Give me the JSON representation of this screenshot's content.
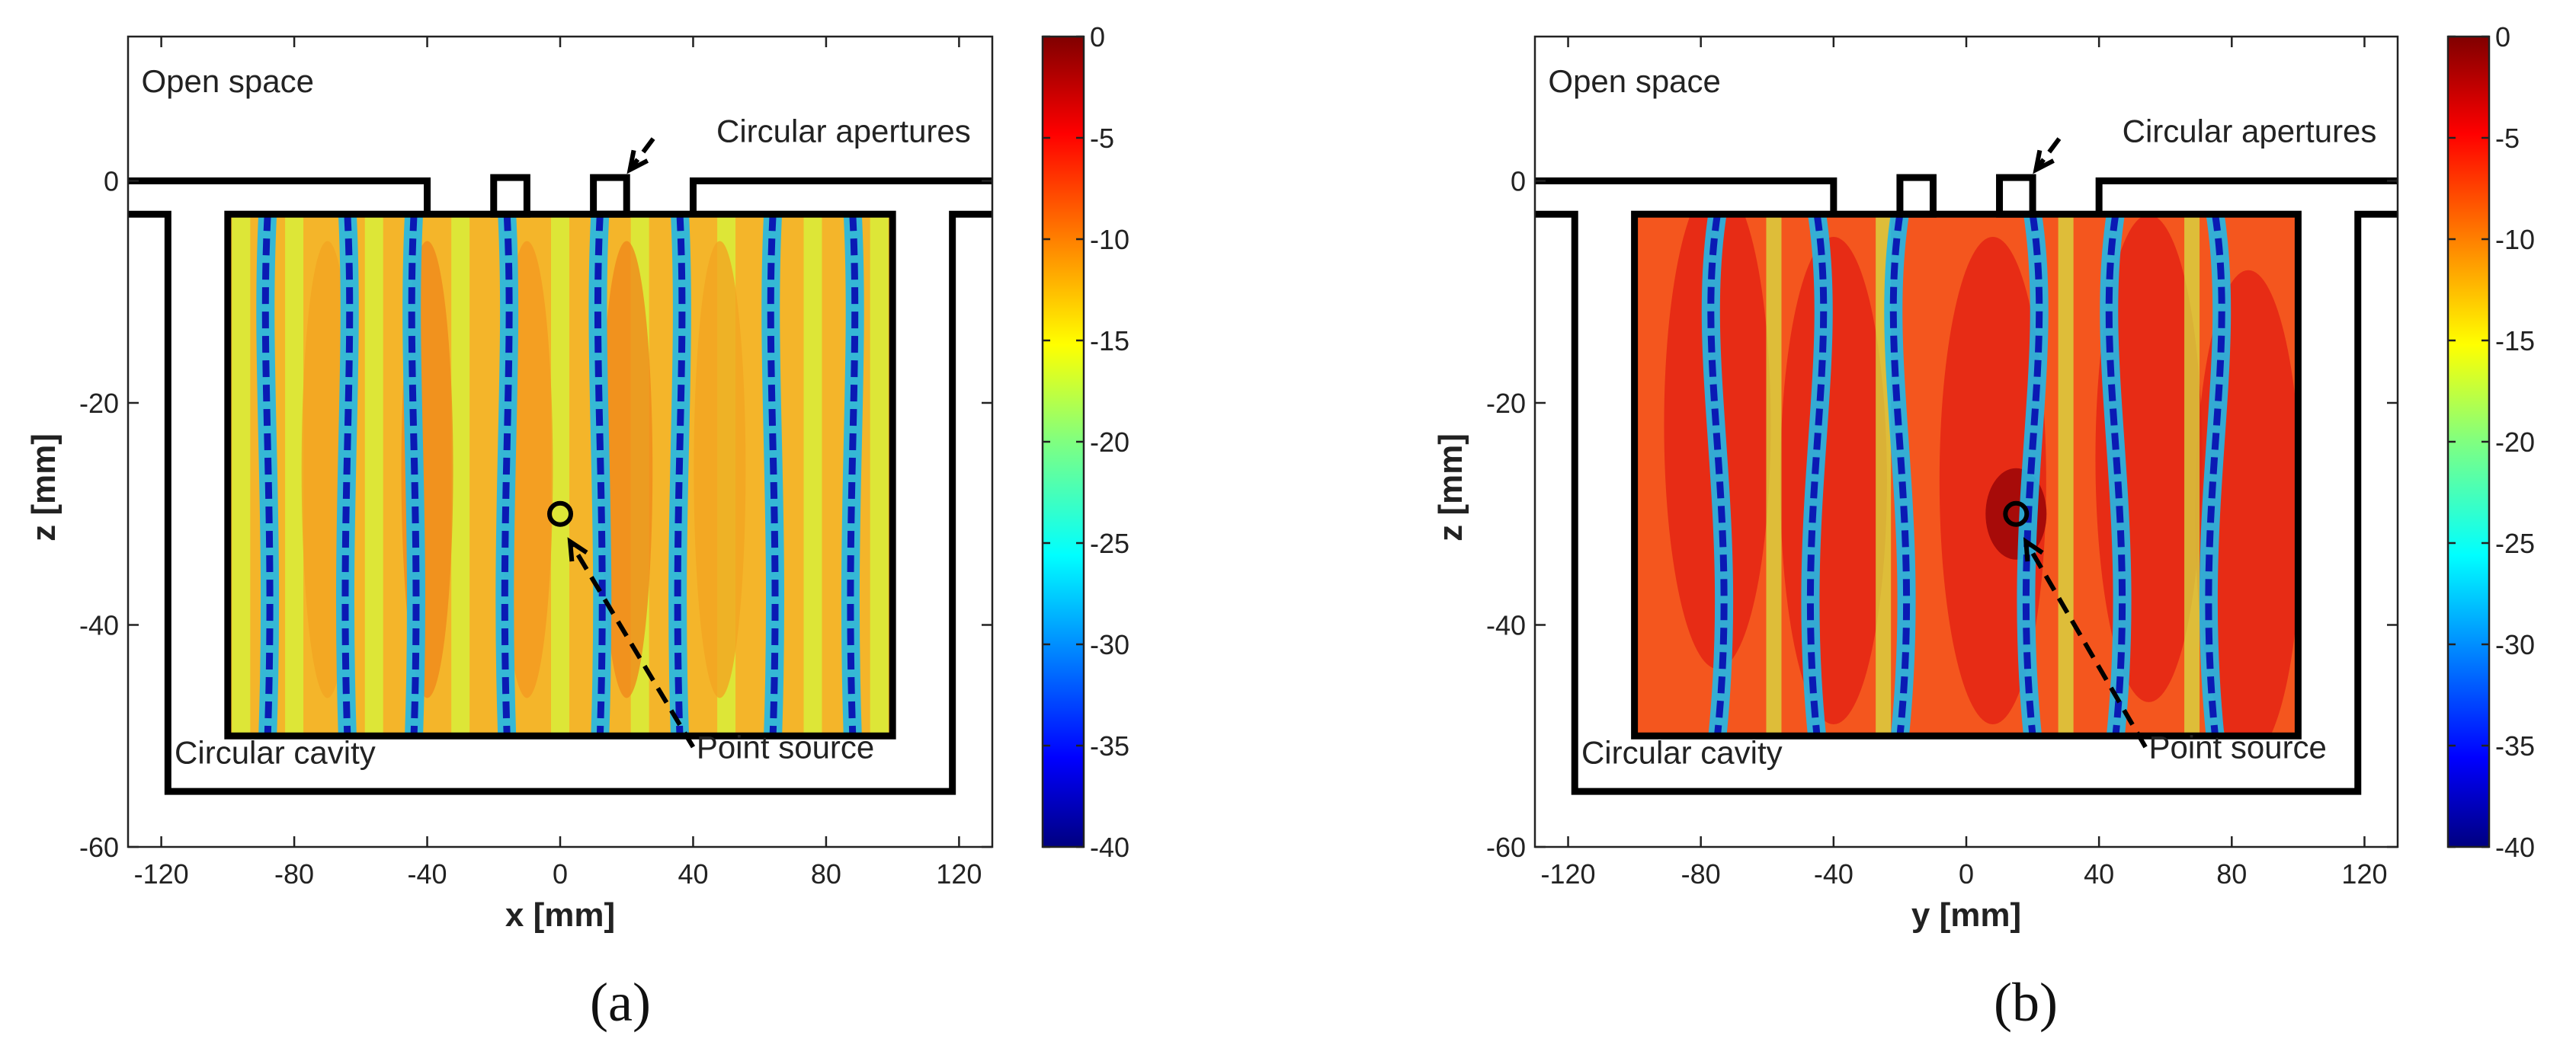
{
  "chart_data": [
    {
      "type": "heatmap",
      "panel_label": "(a)",
      "xlabel": "x [mm]",
      "ylabel": "z [mm]",
      "xlim": [
        -130,
        130
      ],
      "ylim": [
        -60,
        13
      ],
      "x_ticks": [
        -120,
        -80,
        -40,
        0,
        40,
        80,
        120
      ],
      "y_ticks": [
        0,
        -20,
        -40,
        -60
      ],
      "x_tick_labels": [
        "-120",
        "-80",
        "-40",
        "0",
        "40",
        "80",
        "120"
      ],
      "y_tick_labels": [
        "0",
        "-20",
        "-40",
        "-60"
      ],
      "field_extent": {
        "x": [
          -100,
          100
        ],
        "z": [
          -50,
          -3
        ]
      },
      "point_source": [
        0,
        -30
      ],
      "nodal_lines_x": [
        -88,
        -64,
        -44,
        -16,
        12,
        36,
        64,
        88
      ],
      "colorbar": {
        "min": -40,
        "max": 0,
        "ticks": [
          0,
          -5,
          -10,
          -15,
          -20,
          -25,
          -30,
          -35,
          -40
        ],
        "tick_labels": [
          "0",
          "-5",
          "-10",
          "-15",
          "-20",
          "-25",
          "-30",
          "-35",
          "-40"
        ]
      },
      "annotations": [
        {
          "text": "Open space",
          "x": -126,
          "z": 8
        },
        {
          "text": "Circular apertures",
          "x": 47,
          "z": 3.5
        },
        {
          "text": "Circular cavity",
          "x": -116,
          "z": -52.5
        },
        {
          "text": "Point source",
          "x": 41,
          "z": -52
        },
        {
          "text": "z [mm]",
          "role": "ylabel"
        }
      ]
    },
    {
      "type": "heatmap",
      "panel_label": "(b)",
      "xlabel": "y [mm]",
      "ylabel": "z [mm]",
      "xlim": [
        -130,
        130
      ],
      "ylim": [
        -60,
        13
      ],
      "x_ticks": [
        -120,
        -80,
        -40,
        0,
        40,
        80,
        120
      ],
      "y_ticks": [
        0,
        -20,
        -40,
        -60
      ],
      "x_tick_labels": [
        "-120",
        "-80",
        "-40",
        "0",
        "40",
        "80",
        "120"
      ],
      "y_tick_labels": [
        "0",
        "-20",
        "-40",
        "-60"
      ],
      "field_extent": {
        "x": [
          -100,
          100
        ],
        "z": [
          -50,
          -3
        ]
      },
      "point_source": [
        15,
        -30
      ],
      "nodal_lines_x": [
        -75,
        -45,
        -20,
        20,
        45,
        75
      ],
      "colorbar": {
        "min": -40,
        "max": 0,
        "ticks": [
          0,
          -5,
          -10,
          -15,
          -20,
          -25,
          -30,
          -35,
          -40
        ],
        "tick_labels": [
          "0",
          "-5",
          "-10",
          "-15",
          "-20",
          "-25",
          "-30",
          "-35",
          "-40"
        ]
      },
      "annotations": [
        {
          "text": "Open space",
          "x": -126,
          "z": 8
        },
        {
          "text": "Circular apertures",
          "x": 47,
          "z": 3.5
        },
        {
          "text": "Circular cavity",
          "x": -116,
          "z": -52.5
        },
        {
          "text": "Point source",
          "x": 55,
          "z": -52
        },
        {
          "text": "z [mm]",
          "role": "ylabel"
        }
      ]
    }
  ]
}
